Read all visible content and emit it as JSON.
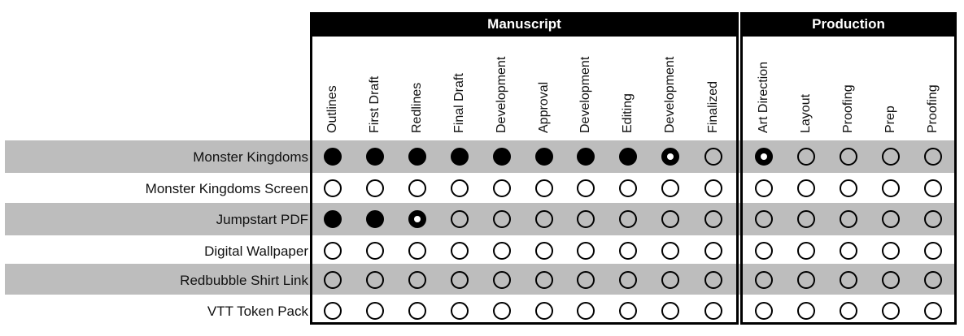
{
  "groups": [
    {
      "label": "Manuscript"
    },
    {
      "label": "Production"
    }
  ],
  "columns": [
    "Outlines",
    "First Draft",
    "Redlines",
    "Final Draft",
    "Development",
    "Approval",
    "Development",
    "Editing",
    "Development",
    "Finalized",
    "Art Direction",
    "Layout",
    "Proofing",
    "Prep",
    "Proofing"
  ],
  "rows": [
    {
      "label": "Monster Kingdoms",
      "status": [
        "done",
        "done",
        "done",
        "done",
        "done",
        "done",
        "done",
        "done",
        "partial",
        "open",
        "partial",
        "open",
        "open",
        "open",
        "open"
      ]
    },
    {
      "label": "Monster Kingdoms Screen",
      "status": [
        "open",
        "open",
        "open",
        "open",
        "open",
        "open",
        "open",
        "open",
        "open",
        "open",
        "open",
        "open",
        "open",
        "open",
        "open"
      ]
    },
    {
      "label": "Jumpstart PDF",
      "status": [
        "done",
        "done",
        "partial",
        "open",
        "open",
        "open",
        "open",
        "open",
        "open",
        "open",
        "open",
        "open",
        "open",
        "open",
        "open"
      ]
    },
    {
      "label": "Digital Wallpaper",
      "status": [
        "open",
        "open",
        "open",
        "open",
        "open",
        "open",
        "open",
        "open",
        "open",
        "open",
        "open",
        "open",
        "open",
        "open",
        "open"
      ]
    },
    {
      "label": "Redbubble Shirt Link",
      "status": [
        "open",
        "open",
        "open",
        "open",
        "open",
        "open",
        "open",
        "open",
        "open",
        "open",
        "open",
        "open",
        "open",
        "open",
        "open"
      ]
    },
    {
      "label": "VTT Token Pack",
      "status": [
        "open",
        "open",
        "open",
        "open",
        "open",
        "open",
        "open",
        "open",
        "open",
        "open",
        "open",
        "open",
        "open",
        "open",
        "open"
      ]
    }
  ],
  "colors": {
    "shade": "#bdbdbd",
    "ink": "#000000",
    "paper": "#ffffff"
  }
}
